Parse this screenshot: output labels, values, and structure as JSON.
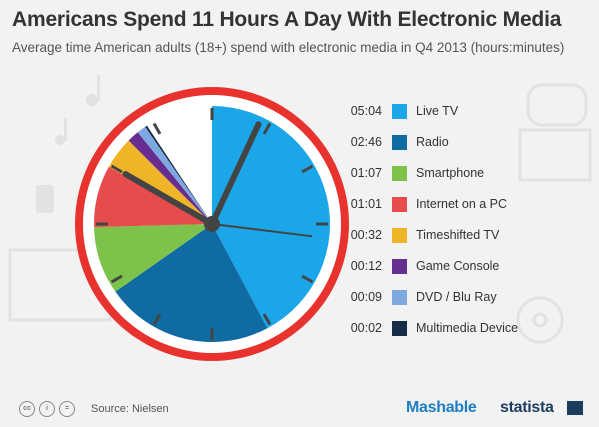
{
  "header": {
    "title": "Americans Spend 11 Hours A Day With Electronic Media",
    "subtitle": "Average time American adults (18+) spend with electronic media in Q4 2013 (hours:minutes)"
  },
  "chart_data": {
    "type": "pie",
    "title": "Americans Spend 11 Hours A Day With Electronic Media",
    "subtitle": "Average time American adults (18+) spend with electronic media in Q4 2013 (hours:minutes)",
    "unit": "hours:minutes",
    "clock_hours": 12,
    "slices": [
      {
        "label": "Live TV",
        "time": "05:04",
        "minutes": 304,
        "color": "#1aa6e8"
      },
      {
        "label": "Radio",
        "time": "02:46",
        "minutes": 166,
        "color": "#106ba3"
      },
      {
        "label": "Smartphone",
        "time": "01:07",
        "minutes": 67,
        "color": "#7dc24b"
      },
      {
        "label": "Internet on a PC",
        "time": "01:01",
        "minutes": 61,
        "color": "#e74c4c"
      },
      {
        "label": "Timeshifted TV",
        "time": "00:32",
        "minutes": 32,
        "color": "#f0b429"
      },
      {
        "label": "Game Console",
        "time": "00:12",
        "minutes": 12,
        "color": "#662e91"
      },
      {
        "label": "DVD / Blu Ray",
        "time": "00:09",
        "minutes": 9,
        "color": "#7fa8e0"
      },
      {
        "label": "Multimedia Device",
        "time": "00:02",
        "minutes": 2,
        "color": "#152c44"
      }
    ],
    "remainder_color": "#ffffff",
    "legend_position": "right"
  },
  "footer": {
    "source": "Source: Nielsen",
    "brand_left": "Mashable",
    "brand_right": "statista"
  }
}
